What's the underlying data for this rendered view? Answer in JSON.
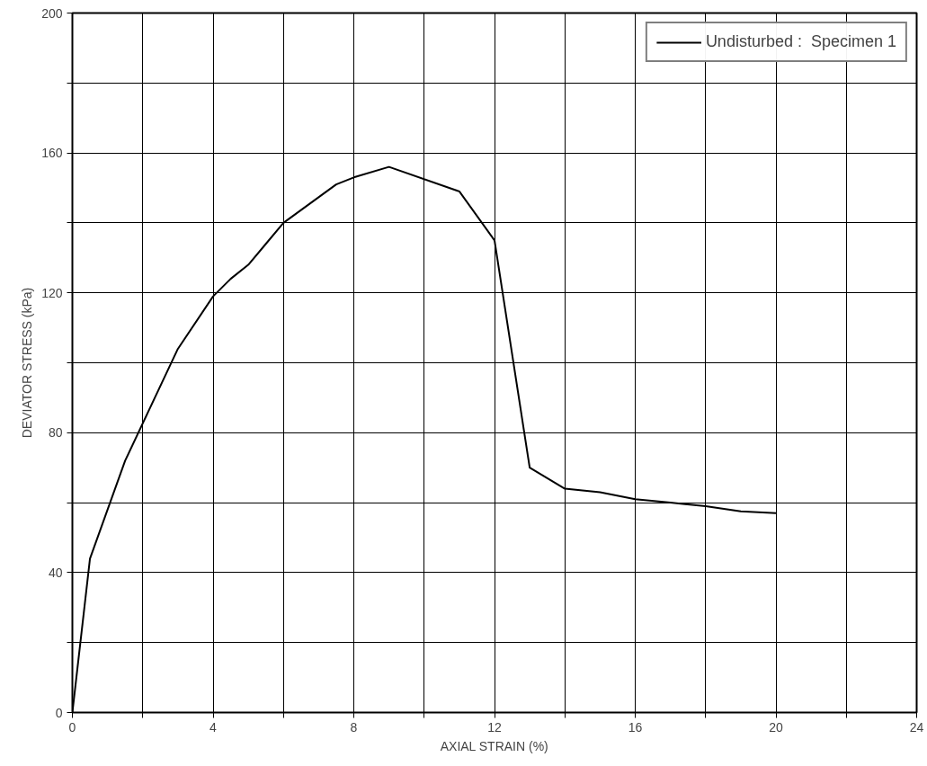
{
  "chart_data": {
    "type": "line",
    "xlabel": "AXIAL STRAIN (%)",
    "ylabel": "DEVIATOR STRESS (kPa)",
    "x": [
      0,
      0.5,
      1.5,
      3,
      4,
      4.5,
      5,
      5.5,
      6,
      7.5,
      8,
      9,
      11,
      12,
      13,
      14,
      15,
      16,
      17,
      18,
      19,
      20
    ],
    "series": [
      {
        "name": "Undisturbed :  Specimen 1",
        "color": "#000000",
        "values": [
          0,
          44,
          72,
          104,
          119,
          124,
          128,
          134,
          140,
          151,
          153,
          156,
          149,
          135,
          70,
          64,
          63,
          61,
          60,
          59,
          57.5,
          57
        ]
      }
    ],
    "xlim": [
      0,
      24
    ],
    "ylim": [
      0,
      200
    ],
    "xticks": [
      0,
      {
        "value": 2,
        "label": null
      },
      4,
      {
        "value": 6,
        "label": null
      },
      8,
      {
        "value": 10,
        "label": null
      },
      12,
      {
        "value": 14,
        "label": null
      },
      16,
      {
        "value": 18,
        "label": null
      },
      20,
      {
        "value": 22,
        "label": null
      },
      24
    ],
    "yticks": [
      0,
      {
        "value": 20,
        "label": null
      },
      40,
      {
        "value": 60,
        "label": null
      },
      80,
      {
        "value": 100,
        "label": null
      },
      120,
      {
        "value": 140,
        "label": null
      },
      160,
      {
        "value": 180,
        "label": null
      },
      200
    ],
    "grid": true,
    "legend": "top right",
    "marker": "none",
    "line_style": "solid"
  }
}
